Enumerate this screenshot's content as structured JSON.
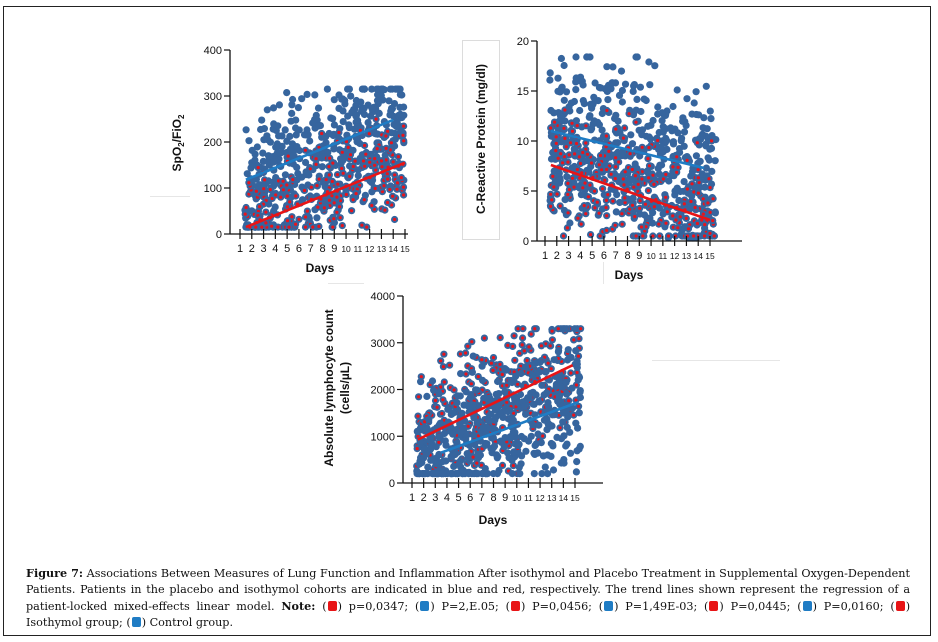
{
  "figure": {
    "caption": {
      "label": "Figure 7:",
      "text": "Associations Between Measures of Lung Function and Inflammation After isothymol and Placebo Treatment in Supplemental Oxygen-Dependent Patients. Patients in the placebo and isothymol cohorts are indicated in blue and red, respectively. The trend lines shown represent the regression of a patient-locked mixed-effects linear model.",
      "note_label": "Note:",
      "notes": [
        {
          "color": "red",
          "text": "p=0,0347;"
        },
        {
          "color": "blue",
          "text": "P=2,E.05;"
        },
        {
          "color": "red",
          "text": "P=0,0456;"
        },
        {
          "color": "blue",
          "text": "P=1,49E-03;"
        },
        {
          "color": "red",
          "text": "P=0,0445;"
        },
        {
          "color": "blue",
          "text": "P=0,0160;"
        },
        {
          "color": "red",
          "text": "Isothymol group;"
        },
        {
          "color": "blue",
          "text": "Control group."
        }
      ]
    },
    "colors": {
      "isothymol": "#e81416",
      "control": "#1f7cc4",
      "point_fill": "#36659e",
      "point_center_red": "#e8141c"
    }
  },
  "chart_data": [
    {
      "type": "scatter",
      "title": "",
      "xlabel": "Days",
      "ylabel": "SpO2/FiO2",
      "ylabel_main": "SpO",
      "ylabel_sub1": "2",
      "ylabel_mid": "/FiO",
      "ylabel_sub2": "2",
      "x_ticks": [
        "1",
        "2",
        "3",
        "4",
        "5",
        "6",
        "7",
        "8",
        "9",
        "10",
        "11",
        "12",
        "13",
        "14",
        "15"
      ],
      "y_ticks": [
        "0",
        "100",
        "200",
        "300",
        "400"
      ],
      "xlim": [
        1,
        15
      ],
      "ylim": [
        0,
        400
      ],
      "series": [
        {
          "name": "Control group",
          "color": "#1f7cc4",
          "trend": {
            "x": [
              1.5,
              14
            ],
            "y": [
              118,
              248
            ]
          },
          "approx_n_points": 420,
          "y_range": [
            20,
            315
          ]
        },
        {
          "name": "Isothymol group",
          "color": "#e81416",
          "trend": {
            "x": [
              1.5,
              15
            ],
            "y": [
              15,
              155
            ]
          },
          "approx_n_points": 300,
          "y_range": [
            15,
            250
          ]
        }
      ]
    },
    {
      "type": "scatter",
      "title": "",
      "xlabel": "Days",
      "ylabel": "C-Reactive Protein (mg/dl)",
      "x_ticks": [
        "1",
        "2",
        "3",
        "4",
        "5",
        "6",
        "7",
        "8",
        "9",
        "10",
        "11",
        "12",
        "13",
        "14",
        "15"
      ],
      "y_ticks": [
        "0",
        "5",
        "10",
        "15",
        "20"
      ],
      "xlim": [
        1,
        15
      ],
      "ylim": [
        0,
        20
      ],
      "series": [
        {
          "name": "Control group",
          "color": "#1f7cc4",
          "trend": {
            "x": [
              1.5,
              14.5
            ],
            "y": [
              11,
              7.3
            ]
          },
          "approx_n_points": 450,
          "y_range": [
            0.3,
            18.4
          ]
        },
        {
          "name": "Isothymol group",
          "color": "#e81416",
          "trend": {
            "x": [
              1.5,
              15
            ],
            "y": [
              7.6,
              2.1
            ]
          },
          "approx_n_points": 320,
          "y_range": [
            0.5,
            15
          ]
        }
      ]
    },
    {
      "type": "scatter",
      "title": "",
      "xlabel": "Days",
      "ylabel_line1": "Absolute lymphocyte count",
      "ylabel_line2": "(cells/µL)",
      "ylabel": "Absolute lymphocyte count (cells/µL)",
      "x_ticks": [
        "1",
        "2",
        "3",
        "4",
        "5",
        "6",
        "7",
        "8",
        "9",
        "10",
        "11",
        "12",
        "13",
        "14",
        "15"
      ],
      "y_ticks": [
        "0",
        "1000",
        "2000",
        "3000",
        "4000"
      ],
      "xlim": [
        1,
        15
      ],
      "ylim": [
        0,
        4000
      ],
      "series": [
        {
          "name": "Isothymol group",
          "color": "#e81416",
          "trend": {
            "x": [
              1.5,
              14.8
            ],
            "y": [
              930,
              2520
            ]
          },
          "approx_n_points": 380,
          "y_range": [
            200,
            3300
          ]
        },
        {
          "name": "Control group",
          "color": "#1f7cc4",
          "trend": {
            "x": [
              3.5,
              15.3
            ],
            "y": [
              650,
              1730
            ]
          },
          "approx_n_points": 360,
          "y_range": [
            200,
            3300
          ]
        }
      ]
    }
  ]
}
